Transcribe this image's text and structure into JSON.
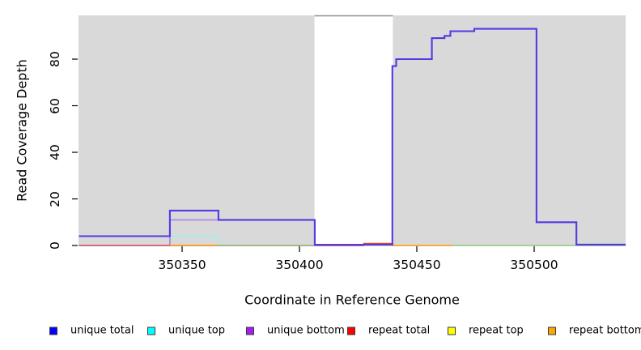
{
  "figure": {
    "y_axis": {
      "label": "Read Coverage Depth",
      "tick_labels": [
        "0",
        "20",
        "40",
        "60",
        "80"
      ]
    },
    "x_axis": {
      "label": "Coordinate in Reference Genome",
      "tick_labels": [
        "350350",
        "350400",
        "350450",
        "350500"
      ]
    },
    "legend": {
      "items": [
        {
          "label": "unique total",
          "color": "#0000ff"
        },
        {
          "label": "unique top",
          "color": "#00ffff"
        },
        {
          "label": "unique bottom",
          "color": "#a020f0"
        },
        {
          "label": "repeat total",
          "color": "#ff0000"
        },
        {
          "label": "repeat top",
          "color": "#ffff00"
        },
        {
          "label": "repeat bottom",
          "color": "#ffa500"
        }
      ]
    }
  },
  "chart_data": {
    "type": "line",
    "style": "step",
    "title": "",
    "xlabel": "Coordinate in Reference Genome",
    "ylabel": "Read Coverage Depth",
    "xlim": [
      350306,
      350539
    ],
    "ylim": [
      0,
      99
    ],
    "x_ticks": [
      350350,
      350400,
      350450,
      350500
    ],
    "y_ticks": [
      0,
      20,
      40,
      60,
      80
    ],
    "plot_background": "#d9d9d9",
    "grid": false,
    "legend_position": "bottom",
    "gap_region": {
      "x_start": 350406.4,
      "x_end": 350439.8,
      "fill": "#ffffff",
      "top_border_color": "#8f8f8f",
      "note": "white uncovered window over plot background"
    },
    "series": [
      {
        "name": "repeat top",
        "legend_color": "#ffff00",
        "line_width": 1.8,
        "segments": [
          {
            "color": "#e9e98a",
            "points": [
              [
                350306,
                0
              ],
              [
                350539,
                0
              ]
            ]
          }
        ]
      },
      {
        "name": "unique top",
        "legend_color": "#00ffff",
        "line_width": 1.8,
        "segments": [
          {
            "color": "#9feeea",
            "points": [
              [
                350306,
                4
              ],
              [
                350365.5,
                4
              ],
              [
                350365.5,
                0
              ],
              [
                350372,
                0
              ]
            ]
          }
        ]
      },
      {
        "name": "unique bottom",
        "legend_color": "#a020f0",
        "line_width": 1.8,
        "segments": [
          {
            "color": "#b681e8",
            "points": [
              [
                350344.8,
                0
              ],
              [
                350344.8,
                11
              ],
              [
                350406.5,
                11
              ],
              [
                350406.5,
                0
              ]
            ]
          }
        ]
      },
      {
        "name": "repeat total",
        "legend_color": "#ff0000",
        "line_width": 1.8,
        "segments": [
          {
            "color": "#cd5b72",
            "points": [
              [
                350306,
                0
              ],
              [
                350427.5,
                0
              ]
            ]
          },
          {
            "color": "#d9473a",
            "points": [
              [
                350427.5,
                0
              ],
              [
                350427.5,
                0.8
              ],
              [
                350439.6,
                0.8
              ],
              [
                350439.6,
                0
              ]
            ]
          }
        ]
      },
      {
        "name": "repeat bottom",
        "legend_color": "#ffa500",
        "line_width": 1.8,
        "segments": [
          {
            "color": "#f7a427",
            "points": [
              [
                350344.8,
                0
              ],
              [
                350365.5,
                0
              ]
            ]
          },
          {
            "color": "#f7a427",
            "points": [
              [
                350439.6,
                0
              ],
              [
                350464.8,
                0
              ]
            ]
          }
        ]
      },
      {
        "name": "unlabeled baseline (green)",
        "legend_color": null,
        "line_width": 1.6,
        "segments": [
          {
            "color": "#90ca90",
            "points": [
              [
                350365.5,
                0
              ],
              [
                350406.4,
                0
              ]
            ]
          },
          {
            "color": "#90ca90",
            "points": [
              [
                350464.8,
                0
              ],
              [
                350539,
                0
              ]
            ]
          }
        ]
      },
      {
        "name": "unique total",
        "legend_color": "#0000ff",
        "line_width": 2.1,
        "segments": [
          {
            "color": "#5339e2",
            "points": [
              [
                350306,
                4
              ],
              [
                350344.8,
                4
              ],
              [
                350344.8,
                15
              ],
              [
                350365.5,
                15
              ],
              [
                350365.5,
                11
              ],
              [
                350406.5,
                11
              ],
              [
                350406.5,
                0.3
              ],
              [
                350439.6,
                0.3
              ],
              [
                350439.6,
                77
              ],
              [
                350441.2,
                77
              ],
              [
                350441.2,
                80
              ],
              [
                350456.4,
                80
              ],
              [
                350456.4,
                89
              ],
              [
                350461.8,
                89
              ],
              [
                350461.8,
                90
              ],
              [
                350464.3,
                90
              ],
              [
                350464.3,
                92
              ],
              [
                350474.5,
                92
              ],
              [
                350474.5,
                93
              ],
              [
                350501,
                93
              ],
              [
                350501,
                10
              ],
              [
                350518,
                10
              ],
              [
                350518,
                0.4
              ],
              [
                350539,
                0.4
              ]
            ]
          }
        ]
      }
    ]
  }
}
